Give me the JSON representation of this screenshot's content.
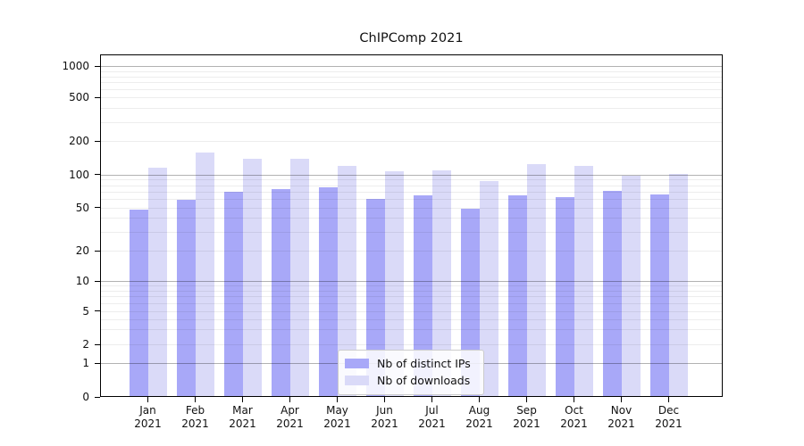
{
  "figure": {
    "title": "ChIPComp 2021"
  },
  "chart_data": {
    "type": "bar",
    "title": "ChIPComp 2021",
    "categories": [
      "Jan 2021",
      "Feb 2021",
      "Mar 2021",
      "Apr 2021",
      "May 2021",
      "Jun 2021",
      "Jul 2021",
      "Aug 2021",
      "Sep 2021",
      "Oct 2021",
      "Nov 2021",
      "Dec 2021"
    ],
    "series": [
      {
        "name": "Nb of distinct IPs",
        "color": "#a8a8f8",
        "values": [
          48,
          59,
          70,
          73,
          77,
          60,
          65,
          49,
          65,
          62,
          71,
          66
        ]
      },
      {
        "name": "Nb of downloads",
        "color": "#dadaf8",
        "values": [
          115,
          157,
          138,
          139,
          120,
          108,
          110,
          88,
          124,
          120,
          98,
          102
        ]
      }
    ],
    "yaxis": {
      "scale": "log-like (0 at baseline)",
      "ticks": [
        1000,
        500,
        200,
        100,
        50,
        20,
        10,
        5,
        2,
        1,
        0
      ],
      "tick_labels": [
        "1000",
        "500",
        "200",
        "100",
        "50",
        "20",
        "10",
        "5",
        "2",
        "1",
        "0"
      ],
      "major_gridlines": [
        1,
        10,
        100,
        1000
      ],
      "minor_gridlines": [
        2,
        3,
        4,
        5,
        6,
        7,
        8,
        9,
        20,
        30,
        40,
        50,
        60,
        70,
        80,
        90,
        200,
        300,
        400,
        500,
        600,
        700,
        800,
        900
      ],
      "ylim": [
        0,
        1300
      ]
    },
    "legend": {
      "position": "lower center",
      "entries": [
        "Nb of distinct IPs",
        "Nb of downloads"
      ]
    },
    "grid": true
  },
  "colors": {
    "bar_distinct_ips": "#a8a8f8",
    "bar_downloads": "#dadaf8",
    "major_grid": "rgba(0,0,0,0.30)",
    "minor_grid": "rgba(0,0,0,0.07)",
    "axis": "#000000",
    "legend_border": "#cccccc",
    "legend_background": "rgba(255,255,255,0.85)"
  }
}
